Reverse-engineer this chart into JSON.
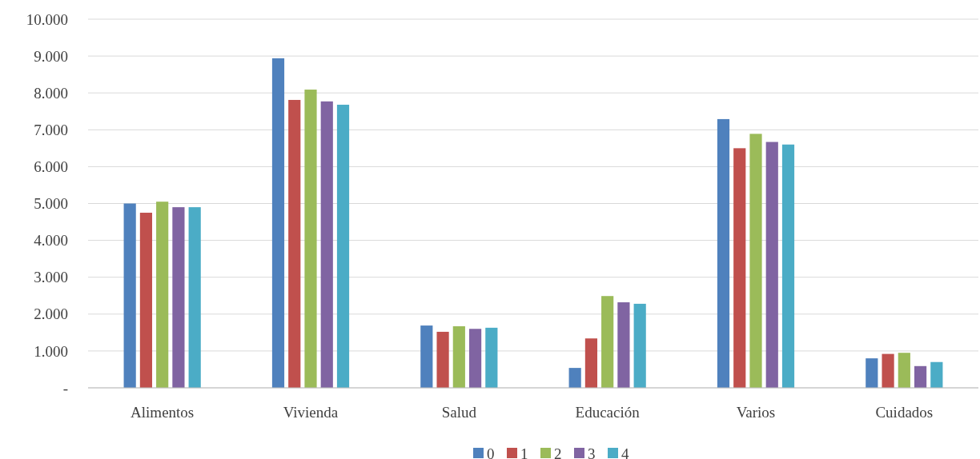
{
  "chart_data": {
    "type": "bar",
    "categories": [
      "Alimentos",
      "Vivienda",
      "Salud",
      "Educación",
      "Varios",
      "Cuidados"
    ],
    "series": [
      {
        "name": "0",
        "color": "#4f81bd",
        "values": [
          5000,
          8940,
          1690,
          540,
          7290,
          800
        ]
      },
      {
        "name": "1",
        "color": "#c0504d",
        "values": [
          4750,
          7810,
          1520,
          1340,
          6500,
          920
        ]
      },
      {
        "name": "2",
        "color": "#9bbb59",
        "values": [
          5050,
          8090,
          1670,
          2490,
          6890,
          950
        ]
      },
      {
        "name": "3",
        "color": "#8064a2",
        "values": [
          4900,
          7770,
          1600,
          2320,
          6670,
          590
        ]
      },
      {
        "name": "4",
        "color": "#4bacc6",
        "values": [
          4900,
          7680,
          1630,
          2280,
          6600,
          700
        ]
      }
    ],
    "ylim": [
      0,
      10000
    ],
    "yticks": [
      {
        "value": 0,
        "label": "-"
      },
      {
        "value": 1000,
        "label": "1.000"
      },
      {
        "value": 2000,
        "label": "2.000"
      },
      {
        "value": 3000,
        "label": "3.000"
      },
      {
        "value": 4000,
        "label": "4.000"
      },
      {
        "value": 5000,
        "label": "5.000"
      },
      {
        "value": 6000,
        "label": "6.000"
      },
      {
        "value": 7000,
        "label": "7.000"
      },
      {
        "value": 8000,
        "label": "8.000"
      },
      {
        "value": 9000,
        "label": "9.000"
      },
      {
        "value": 10000,
        "label": "10.000"
      }
    ],
    "grid": "y",
    "legend": "bottom"
  }
}
